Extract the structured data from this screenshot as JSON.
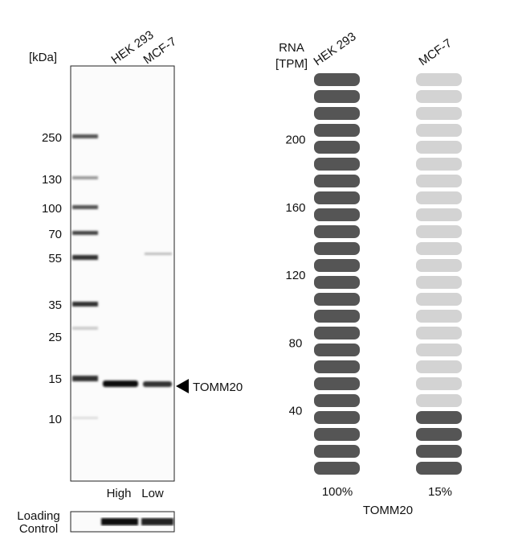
{
  "blot": {
    "unit": "[kDa]",
    "lanes": [
      "HEK 293",
      "MCF-7"
    ],
    "markers": [
      "250",
      "130",
      "100",
      "70",
      "55",
      "35",
      "25",
      "15",
      "10"
    ],
    "target": "TOMM20",
    "expression": [
      "High",
      "Low"
    ],
    "loading_control": [
      "Loading",
      "Control"
    ]
  },
  "rna": {
    "axis_title": [
      "RNA",
      "[TPM]"
    ],
    "samples": [
      "HEK 293",
      "MCF-7"
    ],
    "ticks": [
      200,
      160,
      120,
      80,
      40
    ],
    "percent_labels": [
      "100%",
      "15%"
    ],
    "percents": [
      100,
      15
    ],
    "gene": "TOMM20"
  }
}
